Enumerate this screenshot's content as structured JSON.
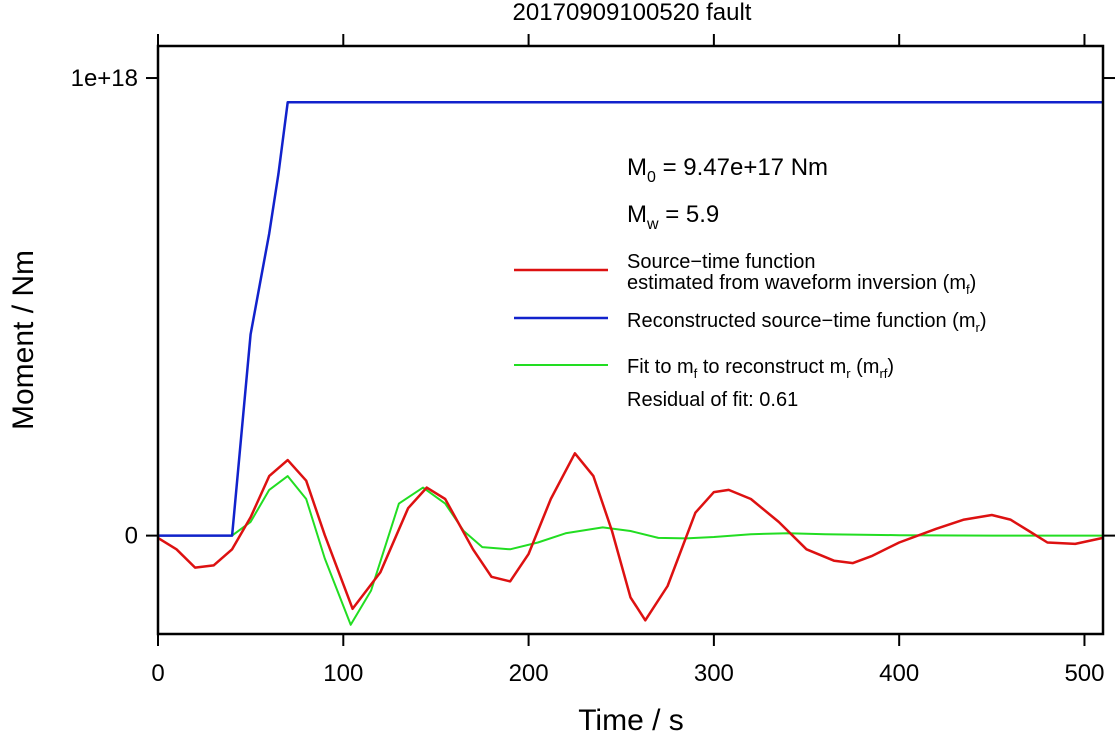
{
  "chart_data": {
    "type": "line",
    "title": "20170909100520 fault",
    "xlabel": "Time / s",
    "ylabel": "Moment / Nm",
    "xlim": [
      0,
      510
    ],
    "ylim": [
      -2.15e+17,
      1.07e+18
    ],
    "x_ticks": [
      0,
      100,
      200,
      300,
      400,
      500
    ],
    "x_tick_labels": [
      "0",
      "100",
      "200",
      "300",
      "400",
      "500"
    ],
    "y_ticks": [
      0,
      1e+18
    ],
    "y_tick_labels": [
      "0",
      "1e+18"
    ],
    "grid": false,
    "legend_position": "right",
    "annotations": {
      "m0": {
        "main": "M",
        "sub": "0",
        "rest": " = 9.47e+17 Nm"
      },
      "mw": {
        "main": "M",
        "sub": "w",
        "rest": " = 5.9"
      },
      "residual": "Residual of fit: 0.61"
    },
    "legend": [
      {
        "color": "#dd1111",
        "line1": "Source−time function",
        "line2_pre": "estimated from waveform inversion (m",
        "line2_sub": "f",
        "line2_post": ")"
      },
      {
        "color": "#1122cc",
        "pre": "Reconstructed source−time function (m",
        "sub": "r",
        "post": ")"
      },
      {
        "color": "#22dd22",
        "parts": [
          {
            "t": "Fit to m"
          },
          {
            "sub": "f"
          },
          {
            "t": " to reconstruct m"
          },
          {
            "sub": "r"
          },
          {
            "t": " (m"
          },
          {
            "sub": "rf"
          },
          {
            "t": ")"
          }
        ]
      }
    ],
    "series": [
      {
        "name": "Source−time function estimated from waveform inversion (mf)",
        "color": "#dd1111",
        "x": [
          0,
          10,
          20,
          30,
          40,
          50,
          60,
          70,
          80,
          90,
          105,
          120,
          135,
          145,
          155,
          170,
          180,
          190,
          200,
          212,
          225,
          235,
          245,
          255,
          263,
          275,
          290,
          300,
          308,
          320,
          335,
          350,
          365,
          375,
          385,
          400,
          420,
          435,
          450,
          460,
          470,
          480,
          495,
          510
        ],
        "y": [
          -5000000000000000.0,
          -3e+16,
          -7e+16,
          -6.5e+16,
          -3e+16,
          4e+16,
          1.3e+17,
          1.65e+17,
          1.2e+17,
          1000000000000000.0,
          -1.6e+17,
          -8e+16,
          6e+16,
          1.05e+17,
          8e+16,
          -3e+16,
          -9e+16,
          -1e+17,
          -4e+16,
          8e+16,
          1.8e+17,
          1.3e+17,
          1e+16,
          -1.35e+17,
          -1.85e+17,
          -1.1e+17,
          5e+16,
          9.5e+16,
          1e+17,
          8e+16,
          3e+16,
          -3e+16,
          -5.5e+16,
          -6e+16,
          -4.5e+16,
          -1.5e+16,
          1.5e+16,
          3.5e+16,
          4.5e+16,
          3.5e+16,
          1e+16,
          -1.5e+16,
          -1.8e+16,
          -5000000000000000.0
        ]
      },
      {
        "name": "Reconstructed source−time function (mr)",
        "color": "#1122cc",
        "x": [
          0,
          40,
          50,
          55,
          60,
          65,
          70,
          510
        ],
        "y": [
          0,
          0,
          4.4e+17,
          5.5e+17,
          6.6e+17,
          7.9e+17,
          9.47e+17,
          9.47e+17
        ]
      },
      {
        "name": "Fit to mf to reconstruct mr (mrf)",
        "color": "#22dd22",
        "x": [
          0,
          40,
          50,
          60,
          70,
          80,
          90,
          104,
          115,
          130,
          143,
          155,
          165,
          175,
          190,
          205,
          220,
          240,
          255,
          270,
          285,
          300,
          320,
          340,
          360,
          400,
          450,
          510
        ],
        "y": [
          0,
          0,
          3e+16,
          1e+17,
          1.3e+17,
          8e+16,
          -5e+16,
          -1.95e+17,
          -1.2e+17,
          7e+16,
          1.05e+17,
          7e+16,
          1e+16,
          -2.5e+16,
          -3e+16,
          -1.5e+16,
          5000000000000000.0,
          1.8e+16,
          1e+16,
          -5000000000000000.0,
          -6000000000000000.0,
          -3000000000000000.0,
          3000000000000000.0,
          5000000000000000.0,
          3000000000000000.0,
          1000000000000000.0,
          0,
          0
        ]
      }
    ]
  }
}
